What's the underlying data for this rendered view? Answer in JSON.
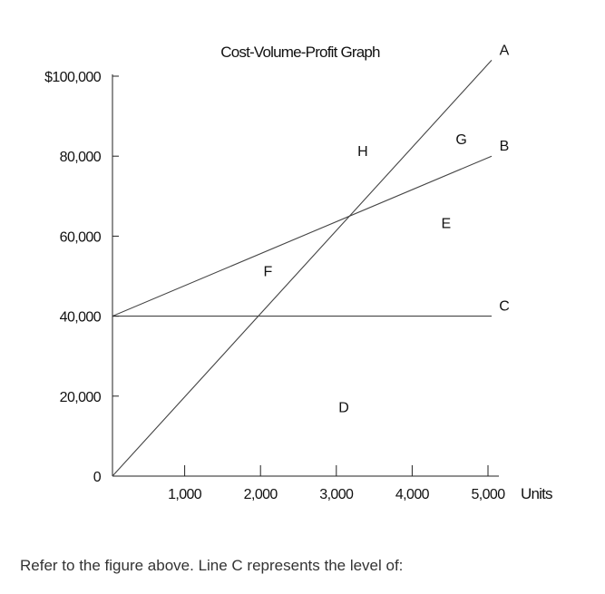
{
  "chart_data": {
    "type": "line",
    "title": "Cost-Volume-Profit Graph",
    "xlabel": "Units",
    "ylabel": "",
    "xlim": [
      0,
      5000
    ],
    "ylim": [
      0,
      100000
    ],
    "x_ticks": [
      1000,
      2000,
      3000,
      4000,
      5000
    ],
    "x_tick_labels": [
      "1,000",
      "2,000",
      "3,000",
      "4,000",
      "5,000"
    ],
    "y_ticks": [
      0,
      20000,
      40000,
      60000,
      80000,
      100000
    ],
    "y_tick_labels": [
      "0",
      "20,000",
      "40,000",
      "60,000",
      "80,000",
      "$100,000"
    ],
    "series": [
      {
        "name": "A",
        "x": [
          0,
          5000
        ],
        "y": [
          0,
          104000
        ]
      },
      {
        "name": "B",
        "x": [
          0,
          5000
        ],
        "y": [
          40000,
          80000
        ]
      },
      {
        "name": "C",
        "x": [
          0,
          5000
        ],
        "y": [
          40000,
          40000
        ]
      }
    ],
    "annotations": [
      {
        "text": "D",
        "x": 3050,
        "y": 16000
      },
      {
        "text": "E",
        "x": 4400,
        "y": 62000
      },
      {
        "text": "F",
        "x": 2050,
        "y": 50000
      },
      {
        "text": "G",
        "x": 4600,
        "y": 83000
      },
      {
        "text": "H",
        "x": 3300,
        "y": 80000
      }
    ],
    "grid": false,
    "legend": "none"
  },
  "question": "Refer to the figure above. Line C represents the level of:"
}
